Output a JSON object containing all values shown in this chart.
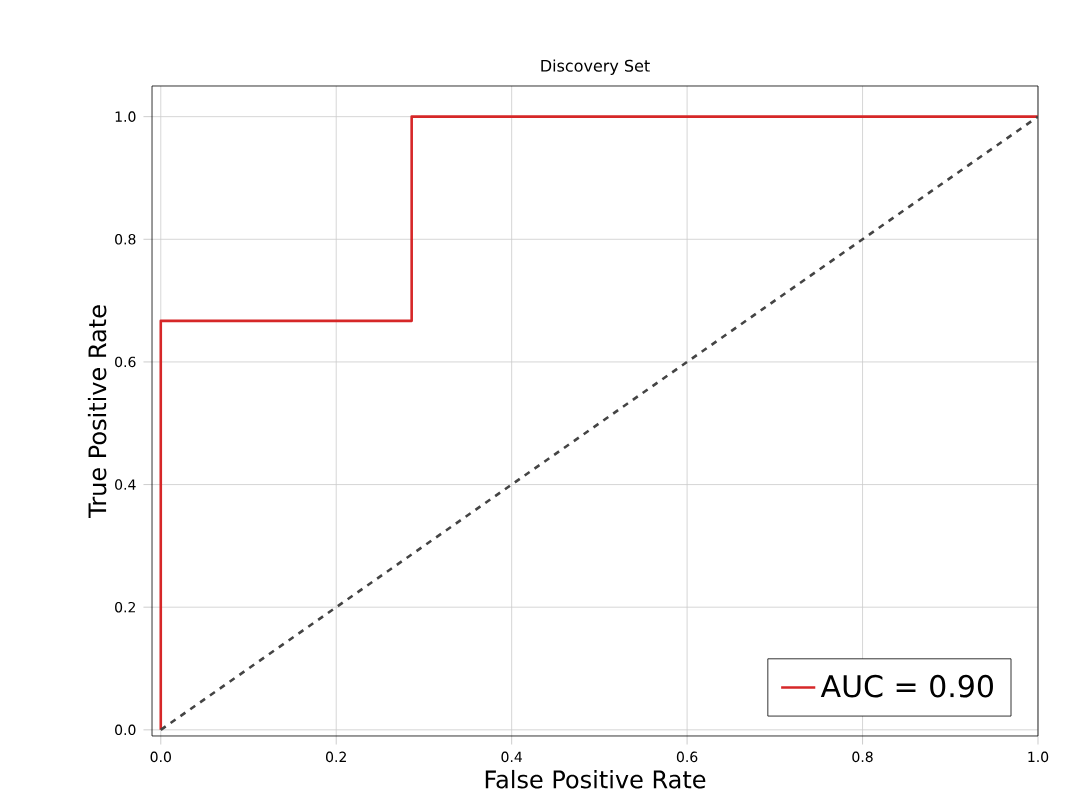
{
  "chart_data": {
    "type": "line",
    "title": "Discovery Set",
    "xlabel": "False Positive Rate",
    "ylabel": "True Positive Rate",
    "xlim": [
      -0.01,
      1.0
    ],
    "ylim": [
      -0.01,
      1.05
    ],
    "xticks": [
      {
        "value": 0,
        "label": "0.0"
      },
      {
        "value": 0.2,
        "label": "0.2"
      },
      {
        "value": 0.4,
        "label": "0.4"
      },
      {
        "value": 0.6,
        "label": "0.6"
      },
      {
        "value": 0.8,
        "label": "0.8"
      },
      {
        "value": 1,
        "label": "1.0"
      }
    ],
    "yticks": [
      {
        "value": 0,
        "label": "0.0"
      },
      {
        "value": 0.2,
        "label": "0.2"
      },
      {
        "value": 0.4,
        "label": "0.4"
      },
      {
        "value": 0.6,
        "label": "0.6"
      },
      {
        "value": 0.8,
        "label": "0.8"
      },
      {
        "value": 1,
        "label": "1.0"
      }
    ],
    "grid": true,
    "legend": "bottom right",
    "marker": "none",
    "series": [
      {
        "name": "AUC = 0.90",
        "color": "#d62728",
        "line_style": "solid",
        "x": [
          0,
          0,
          0.286,
          0.286,
          1
        ],
        "values": [
          0,
          0.667,
          0.667,
          1,
          1
        ]
      },
      {
        "color": "#444444",
        "line_style": "dashed",
        "x": [
          0,
          1
        ],
        "values": [
          0,
          1
        ]
      }
    ]
  }
}
